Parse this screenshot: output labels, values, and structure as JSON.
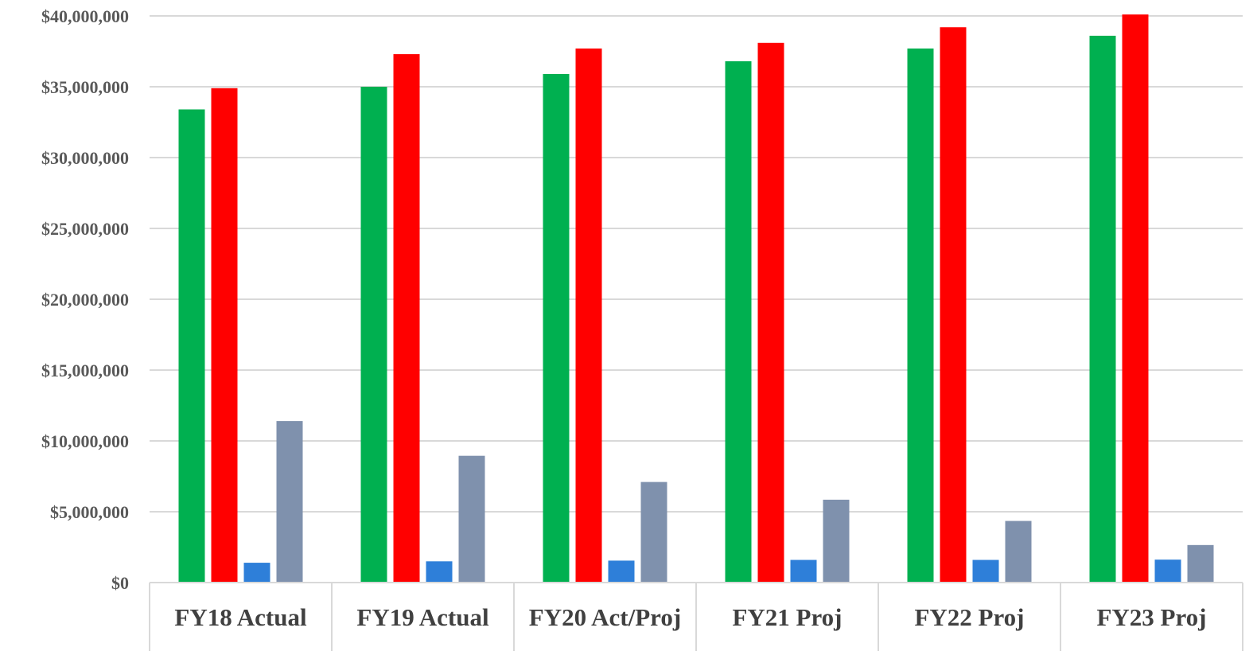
{
  "chart_data": {
    "type": "bar",
    "title": "",
    "xlabel": "",
    "ylabel": "",
    "categories": [
      "FY18 Actual",
      "FY19 Actual",
      "FY20 Act/Proj",
      "FY21 Proj",
      "FY22 Proj",
      "FY23 Proj"
    ],
    "ylim": [
      0,
      40000000
    ],
    "yticks": [
      0,
      5000000,
      10000000,
      15000000,
      20000000,
      25000000,
      30000000,
      35000000,
      40000000
    ],
    "ytick_labels": [
      "$0",
      "$5,000,000",
      "$10,000,000",
      "$15,000,000",
      "$20,000,000",
      "$25,000,000",
      "$30,000,000",
      "$35,000,000",
      "$40,000,000"
    ],
    "grid": true,
    "legend": "none",
    "series": [
      {
        "color": "#00b050",
        "values": [
          33400000,
          35000000,
          35900000,
          36800000,
          37700000,
          38600000
        ]
      },
      {
        "color": "#ff0000",
        "values": [
          34900000,
          37300000,
          37700000,
          38100000,
          39200000,
          40100000
        ]
      },
      {
        "color": "#2e7fd9",
        "values": [
          1400000,
          1500000,
          1550000,
          1600000,
          1600000,
          1620000
        ]
      },
      {
        "color": "#7f91ad",
        "values": [
          11400000,
          8950000,
          7100000,
          5850000,
          4350000,
          2650000
        ]
      }
    ]
  }
}
